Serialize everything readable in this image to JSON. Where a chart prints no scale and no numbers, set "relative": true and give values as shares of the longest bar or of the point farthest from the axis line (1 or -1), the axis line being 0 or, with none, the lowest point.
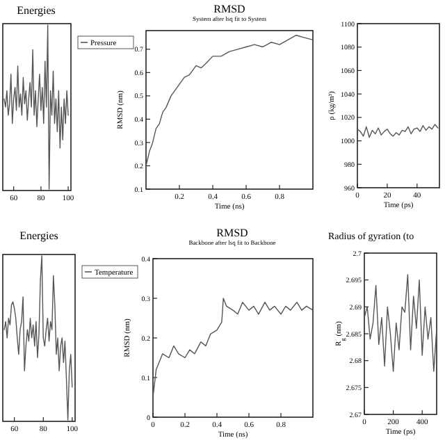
{
  "chart_data": [
    {
      "type": "line",
      "title": "Energies",
      "relative": true,
      "legend": "right",
      "x": [
        53,
        54,
        55,
        56,
        57,
        58,
        59,
        60,
        61,
        62,
        63,
        64,
        65,
        66,
        67,
        68,
        69,
        70,
        71,
        72,
        73,
        74,
        75,
        76,
        77,
        78,
        79,
        80,
        81,
        82,
        83,
        84,
        85,
        86,
        87,
        88,
        89,
        90,
        91,
        92,
        93,
        94,
        95,
        96,
        97,
        98,
        99,
        100
      ],
      "xlim": [
        52,
        102
      ],
      "xticks": [
        60,
        80,
        100
      ],
      "series": [
        {
          "name": "Pressure",
          "color": "#555555",
          "values": [
            0.55,
            0.5,
            0.6,
            0.45,
            0.52,
            0.7,
            0.4,
            0.55,
            0.62,
            0.48,
            0.75,
            0.5,
            0.58,
            0.45,
            0.68,
            0.52,
            0.6,
            0.42,
            0.55,
            0.65,
            0.5,
            0.85,
            0.45,
            0.6,
            0.38,
            0.55,
            0.7,
            0.48,
            0.62,
            0.4,
            0.78,
            0.5,
            1,
            0,
            0.6,
            0.45,
            0.72,
            0.4,
            0.55,
            0.35,
            0.6,
            0.25,
            0.5,
            0.3,
            0.55,
            0.4,
            0.6,
            0.45
          ]
        }
      ]
    },
    {
      "type": "line",
      "title": "RMSD",
      "subtitle": "System after lsq fit to System",
      "xlabel": "Time (ns)",
      "ylabel": "RMSD (nm)",
      "x": [
        0,
        0.02,
        0.04,
        0.06,
        0.08,
        0.1,
        0.12,
        0.15,
        0.18,
        0.2,
        0.23,
        0.26,
        0.3,
        0.33,
        0.36,
        0.4,
        0.45,
        0.5,
        0.55,
        0.6,
        0.65,
        0.7,
        0.75,
        0.8,
        0.85,
        0.9,
        0.95,
        1
      ],
      "xlim": [
        0,
        1
      ],
      "xticks": [
        0.2,
        0.4,
        0.6,
        0.8
      ],
      "ylim": [
        0.1,
        0.78
      ],
      "yticks": [
        0.1,
        0.2,
        0.3,
        0.4,
        0.5,
        0.6,
        0.7
      ],
      "series": [
        {
          "color": "#555555",
          "values": [
            0.2,
            0.26,
            0.3,
            0.36,
            0.38,
            0.43,
            0.45,
            0.5,
            0.53,
            0.55,
            0.58,
            0.59,
            0.63,
            0.62,
            0.64,
            0.67,
            0.67,
            0.69,
            0.7,
            0.71,
            0.72,
            0.71,
            0.73,
            0.72,
            0.74,
            0.76,
            0.75,
            0.74
          ]
        }
      ]
    },
    {
      "type": "line",
      "xlabel": "Time (ps)",
      "ylabel": "ρ (kg/m³)",
      "x": [
        0,
        2,
        4,
        6,
        8,
        10,
        12,
        14,
        16,
        18,
        20,
        22,
        24,
        26,
        28,
        30,
        32,
        34,
        36,
        38,
        40,
        42,
        44,
        46,
        48,
        50,
        52,
        54
      ],
      "xlim": [
        0,
        55
      ],
      "xticks": [
        0,
        20,
        40
      ],
      "ylim": [
        960,
        1100
      ],
      "yticks": [
        960,
        980,
        1000,
        1020,
        1040,
        1060,
        1080,
        1100
      ],
      "series": [
        {
          "color": "#555555",
          "values": [
            1010,
            1008,
            1004,
            1012,
            1003,
            1009,
            1006,
            1011,
            1005,
            1008,
            1010,
            1006,
            1004,
            1007,
            1005,
            1009,
            1008,
            1012,
            1006,
            1010,
            1011,
            1008,
            1013,
            1009,
            1012,
            1010,
            1014,
            1011
          ]
        }
      ]
    },
    {
      "type": "line",
      "title": "Energies",
      "relative": true,
      "legend": "right",
      "x": [
        53,
        54,
        55,
        56,
        57,
        58,
        59,
        60,
        61,
        62,
        63,
        64,
        65,
        66,
        67,
        68,
        69,
        70,
        71,
        72,
        73,
        74,
        75,
        76,
        77,
        78,
        79,
        80,
        81,
        82,
        83,
        84,
        85,
        86,
        87,
        88,
        89,
        90,
        91,
        92,
        93,
        94,
        95,
        96,
        97,
        98,
        99,
        100
      ],
      "xlim": [
        52,
        102
      ],
      "xticks": [
        60,
        80,
        100
      ],
      "series": [
        {
          "name": "Temperature",
          "color": "#555555",
          "values": [
            0.55,
            0.6,
            0.5,
            0.62,
            0.58,
            0.7,
            0.72,
            0.68,
            0.62,
            0.5,
            0.4,
            0.55,
            0.6,
            0.75,
            0.3,
            0.45,
            0.55,
            0.48,
            0.62,
            0.5,
            0.58,
            0.45,
            0.6,
            0.38,
            0.52,
            0.85,
            1,
            0.5,
            0.45,
            0.55,
            0.62,
            0.48,
            0.6,
            0.55,
            0.88,
            0.7,
            0.4,
            0.5,
            0.3,
            0.45,
            0.5,
            0.35,
            0.48,
            0.25,
            0,
            0.3,
            0.4,
            0.2
          ]
        }
      ]
    },
    {
      "type": "line",
      "title": "RMSD",
      "subtitle": "Backbone after lsq fit to Backbone",
      "xlabel": "Time (ns)",
      "ylabel": "RMSD (nm)",
      "x": [
        0,
        0.02,
        0.04,
        0.06,
        0.1,
        0.13,
        0.16,
        0.2,
        0.23,
        0.26,
        0.3,
        0.33,
        0.36,
        0.4,
        0.43,
        0.44,
        0.46,
        0.5,
        0.53,
        0.56,
        0.6,
        0.63,
        0.66,
        0.7,
        0.73,
        0.76,
        0.8,
        0.83,
        0.86,
        0.9,
        0.93,
        0.96,
        1
      ],
      "xlim": [
        0,
        1
      ],
      "xticks": [
        0,
        0.2,
        0.4,
        0.6,
        0.8
      ],
      "ylim": [
        0,
        0.4
      ],
      "yticks": [
        0,
        0.1,
        0.2,
        0.3,
        0.4
      ],
      "series": [
        {
          "color": "#555555",
          "values": [
            0.05,
            0.12,
            0.14,
            0.16,
            0.15,
            0.18,
            0.16,
            0.15,
            0.17,
            0.16,
            0.19,
            0.18,
            0.21,
            0.22,
            0.24,
            0.3,
            0.28,
            0.27,
            0.26,
            0.29,
            0.27,
            0.28,
            0.26,
            0.29,
            0.27,
            0.28,
            0.26,
            0.28,
            0.27,
            0.29,
            0.27,
            0.28,
            0.27
          ]
        }
      ]
    },
    {
      "type": "line",
      "title": "Radius of gyration (to",
      "xlabel": "Time (ps)",
      "ylabel": "R$_{g}$ (nm)",
      "x": [
        0,
        20,
        40,
        60,
        80,
        100,
        120,
        140,
        160,
        180,
        200,
        220,
        240,
        260,
        280,
        300,
        320,
        340,
        360,
        380,
        400,
        420,
        440,
        460,
        480,
        500
      ],
      "xlim": [
        0,
        500
      ],
      "xticks": [
        0,
        200,
        400
      ],
      "ylim": [
        2.67,
        2.7
      ],
      "yticks": [
        2.67,
        2.675,
        2.68,
        2.685,
        2.69,
        2.695,
        2.7
      ],
      "series": [
        {
          "color": "#555555",
          "values": [
            2.688,
            2.69,
            2.684,
            2.687,
            2.694,
            2.683,
            2.688,
            2.679,
            2.69,
            2.685,
            2.678,
            2.687,
            2.682,
            2.69,
            2.689,
            2.696,
            2.682,
            2.692,
            2.686,
            2.695,
            2.681,
            2.69,
            2.684,
            2.688,
            2.678,
            2.686
          ]
        }
      ]
    }
  ]
}
